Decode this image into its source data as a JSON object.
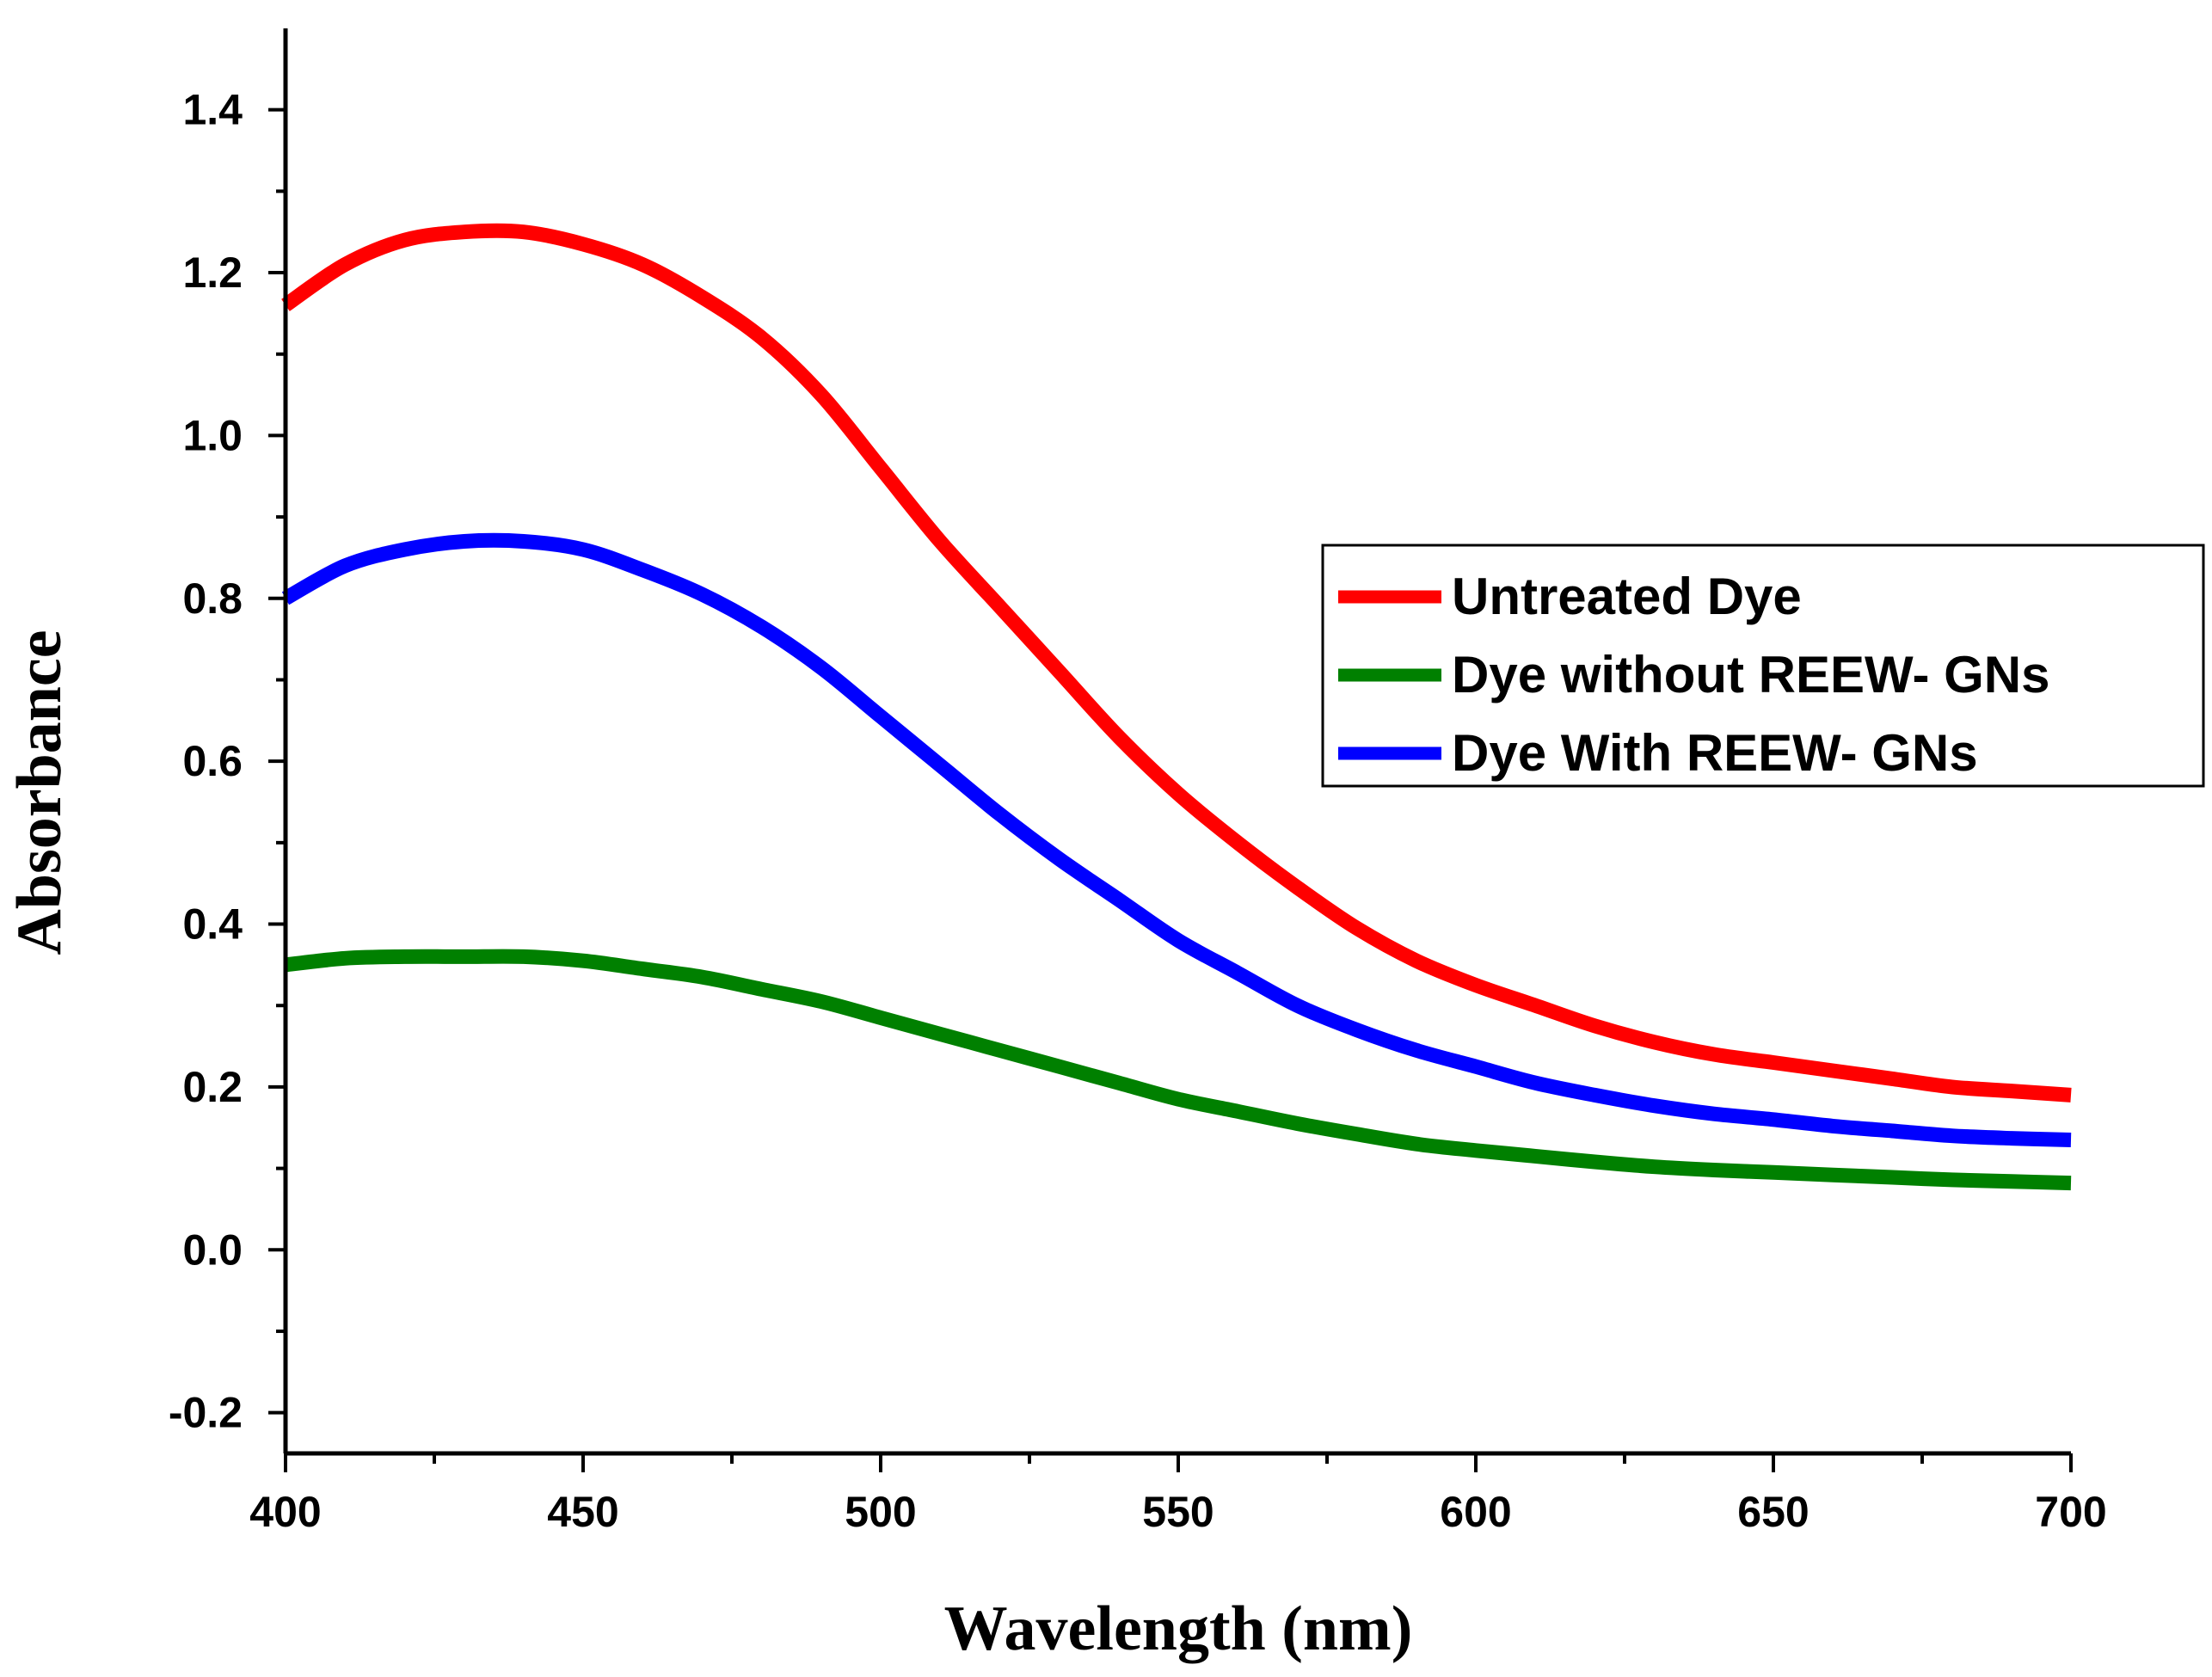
{
  "chart_data": {
    "type": "line",
    "title": "",
    "xlabel": "Wavelength (nm)",
    "ylabel": "Absorbance",
    "xlim": [
      400,
      700
    ],
    "ylim": [
      -0.25,
      1.5
    ],
    "xticks": [
      400,
      450,
      500,
      550,
      600,
      650,
      700
    ],
    "xtick_labels": [
      "400",
      "450",
      "500",
      "550",
      "600",
      "650",
      "700"
    ],
    "yticks": [
      -0.2,
      0.0,
      0.2,
      0.4,
      0.6,
      0.8,
      1.0,
      1.2,
      1.4
    ],
    "ytick_labels": [
      "-0.2",
      "0.0",
      "0.2",
      "0.4",
      "0.6",
      "0.8",
      "1.0",
      "1.2",
      "1.4"
    ],
    "grid": false,
    "legend_position": "right",
    "x": [
      400,
      410,
      420,
      430,
      440,
      450,
      460,
      470,
      480,
      490,
      500,
      510,
      520,
      530,
      540,
      550,
      560,
      570,
      580,
      590,
      600,
      610,
      620,
      630,
      640,
      650,
      660,
      670,
      680,
      690,
      700
    ],
    "series": [
      {
        "name": "Untreated Dye",
        "color": "#ff0000",
        "values": [
          1.16,
          1.21,
          1.24,
          1.25,
          1.25,
          1.235,
          1.21,
          1.17,
          1.12,
          1.05,
          0.96,
          0.87,
          0.79,
          0.71,
          0.63,
          0.56,
          0.5,
          0.445,
          0.395,
          0.355,
          0.325,
          0.3,
          0.275,
          0.255,
          0.24,
          0.23,
          0.22,
          0.21,
          0.2,
          0.195,
          0.19
        ]
      },
      {
        "name": "Dye without REEW- GNs",
        "color": "#008000",
        "values": [
          0.35,
          0.358,
          0.36,
          0.36,
          0.36,
          0.355,
          0.345,
          0.335,
          0.32,
          0.305,
          0.285,
          0.265,
          0.245,
          0.225,
          0.205,
          0.185,
          0.17,
          0.155,
          0.142,
          0.13,
          0.122,
          0.115,
          0.108,
          0.102,
          0.098,
          0.095,
          0.092,
          0.089,
          0.086,
          0.084,
          0.082
        ]
      },
      {
        "name": "Dye With REEW- GNs",
        "color": "#0000ff",
        "values": [
          0.8,
          0.84,
          0.86,
          0.87,
          0.87,
          0.86,
          0.835,
          0.805,
          0.765,
          0.715,
          0.655,
          0.595,
          0.535,
          0.48,
          0.43,
          0.38,
          0.34,
          0.3,
          0.27,
          0.245,
          0.225,
          0.205,
          0.19,
          0.177,
          0.167,
          0.16,
          0.152,
          0.146,
          0.14,
          0.137,
          0.135
        ]
      }
    ]
  }
}
